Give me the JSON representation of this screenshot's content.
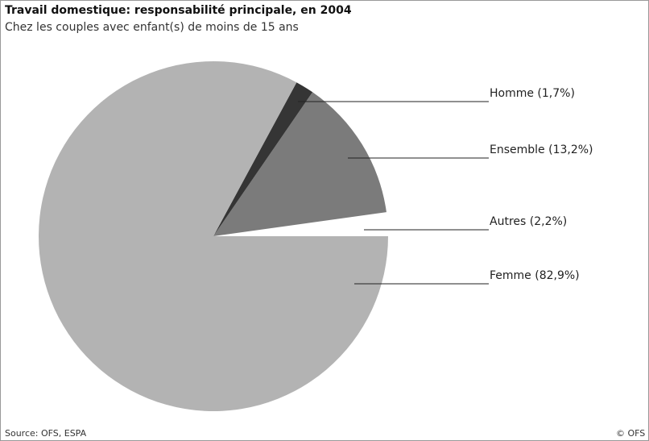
{
  "chart_data": {
    "type": "pie",
    "title": "Travail domestique: responsabilité principale, en 2004",
    "subtitle": "Chez les couples avec enfant(s) de moins de 15 ans",
    "categories": [
      "Autres (2,2%)",
      "Ensemble (13,2%)",
      "Homme (1,7%)",
      "Femme (82,9%)"
    ],
    "values": [
      2.2,
      13.2,
      1.7,
      82.9
    ],
    "colors": [
      "#ffffff",
      "#7b7b7b",
      "#353535",
      "#b3b3b3"
    ],
    "source": "Source: OFS, ESPA",
    "copyright": "© OFS"
  }
}
